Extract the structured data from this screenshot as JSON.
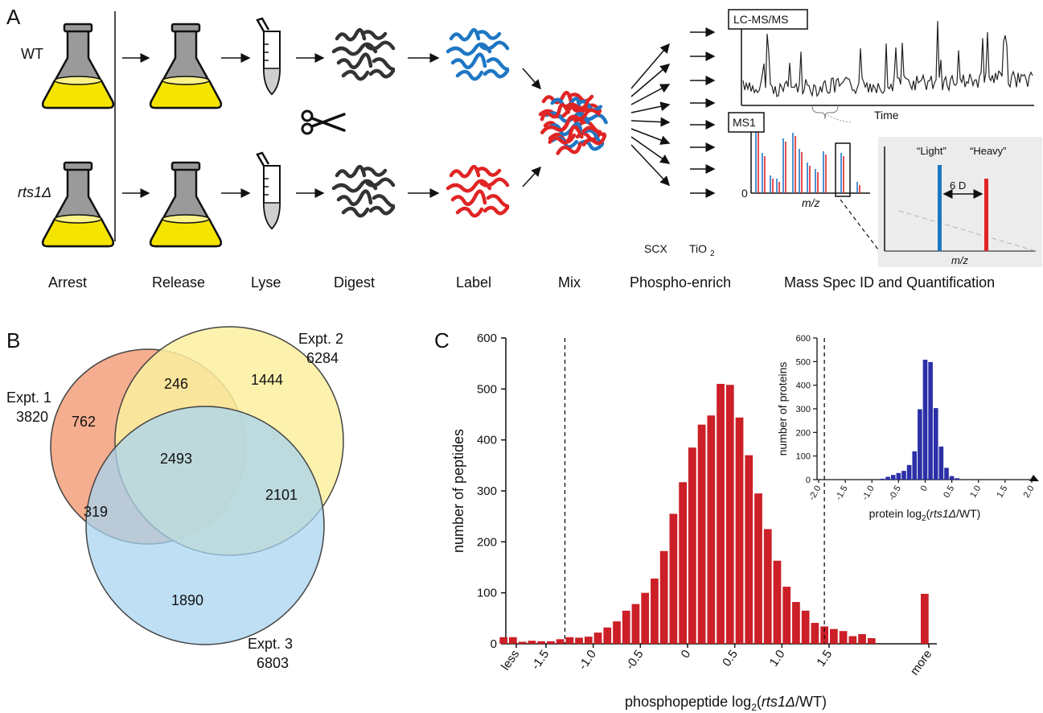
{
  "panel_a": {
    "letter": "A",
    "row_labels": {
      "wt": "WT",
      "mutant": "rts1Δ"
    },
    "steps": [
      "Arrest",
      "Release",
      "Lyse",
      "Digest",
      "Label",
      "Mix",
      "Phospho-enrich",
      "Mass Spec ID and Quantification"
    ],
    "enrich_methods": {
      "scx": "SCX",
      "tio2": "TiO2"
    },
    "lcms_label": "LC-MS/MS",
    "time_label": "Time",
    "ms1_label": "MS1",
    "ms1_zero": "0",
    "mz_label": "m/z",
    "inset": {
      "light": "“Light”",
      "heavy": "“Heavy”",
      "delta": "6 D",
      "mz": "m/z"
    },
    "colors": {
      "light": "#1f77c4",
      "heavy": "#e02424",
      "flask_liquid": "#f5e400",
      "flask_glass": "#9a9a9a",
      "peptide": "#333333"
    }
  },
  "panel_b": {
    "letter": "B",
    "sets": [
      {
        "name": "Expt. 1",
        "total": "3820",
        "color": "#f4a583"
      },
      {
        "name": "Expt. 2",
        "total": "6284",
        "color": "#fbf0a0"
      },
      {
        "name": "Expt. 3",
        "total": "6803",
        "color": "#a8d4f0"
      }
    ],
    "regions": {
      "only1": "762",
      "only2": "1444",
      "only3": "1890",
      "e1_e2": "246",
      "e1_e3": "319",
      "e2_e3": "2101",
      "all": "2493"
    }
  },
  "panel_c": {
    "letter": "C",
    "chart_data": [
      {
        "type": "bar",
        "xlabel": "phosphopeptide log2(rts1Δ/WT)",
        "ylabel": "number of peptides",
        "ylim": [
          0,
          600
        ],
        "yticks": [
          "0",
          "100",
          "200",
          "300",
          "400",
          "500",
          "600"
        ],
        "xticks": [
          "less",
          "-1.5",
          "-1.0",
          "-0.5",
          "0",
          "0.5",
          "1.0",
          "1.5",
          "more"
        ],
        "dashed_lines_x": [
          -1.35,
          1.4
        ],
        "bin_width": 0.1,
        "x": [
          -2.0,
          -1.9,
          -1.8,
          -1.7,
          -1.6,
          -1.5,
          -1.4,
          -1.3,
          -1.2,
          -1.1,
          -1.0,
          -0.9,
          -0.8,
          -0.7,
          -0.6,
          -0.5,
          -0.4,
          -0.3,
          -0.2,
          -0.1,
          0.0,
          0.1,
          0.2,
          0.3,
          0.4,
          0.5,
          0.6,
          0.7,
          0.8,
          0.9,
          1.0,
          1.1,
          1.2,
          1.3,
          1.4,
          1.5,
          1.6,
          1.7,
          1.8,
          1.9
        ],
        "values": [
          13,
          4,
          4,
          6,
          5,
          5,
          9,
          13,
          12,
          14,
          22,
          32,
          44,
          65,
          78,
          100,
          128,
          182,
          255,
          317,
          385,
          430,
          448,
          510,
          508,
          444,
          370,
          295,
          225,
          163,
          112,
          82,
          65,
          41,
          34,
          29,
          25,
          15,
          19,
          11
        ],
        "less_value": 13,
        "more_value": 98,
        "color": "#cc1f27"
      },
      {
        "type": "bar",
        "xlabel": "protein log2(rts1Δ/WT)",
        "ylabel": "number of proteins",
        "ylim": [
          0,
          600
        ],
        "yticks": [
          "0",
          "100",
          "200",
          "300",
          "400",
          "500",
          "600"
        ],
        "xticks": [
          "-2.0",
          "-1.5",
          "-1.0",
          "-0.5",
          "0",
          "0.5",
          "1.0",
          "1.5",
          "2.0"
        ],
        "x": [
          -0.8,
          -0.7,
          -0.6,
          -0.5,
          -0.4,
          -0.3,
          -0.2,
          -0.1,
          0.0,
          0.1,
          0.2,
          0.3,
          0.4,
          0.5,
          0.6
        ],
        "values": [
          4,
          12,
          20,
          28,
          37,
          62,
          120,
          298,
          508,
          498,
          303,
          140,
          50,
          15,
          6
        ],
        "color": "#2b2fa8"
      }
    ]
  }
}
